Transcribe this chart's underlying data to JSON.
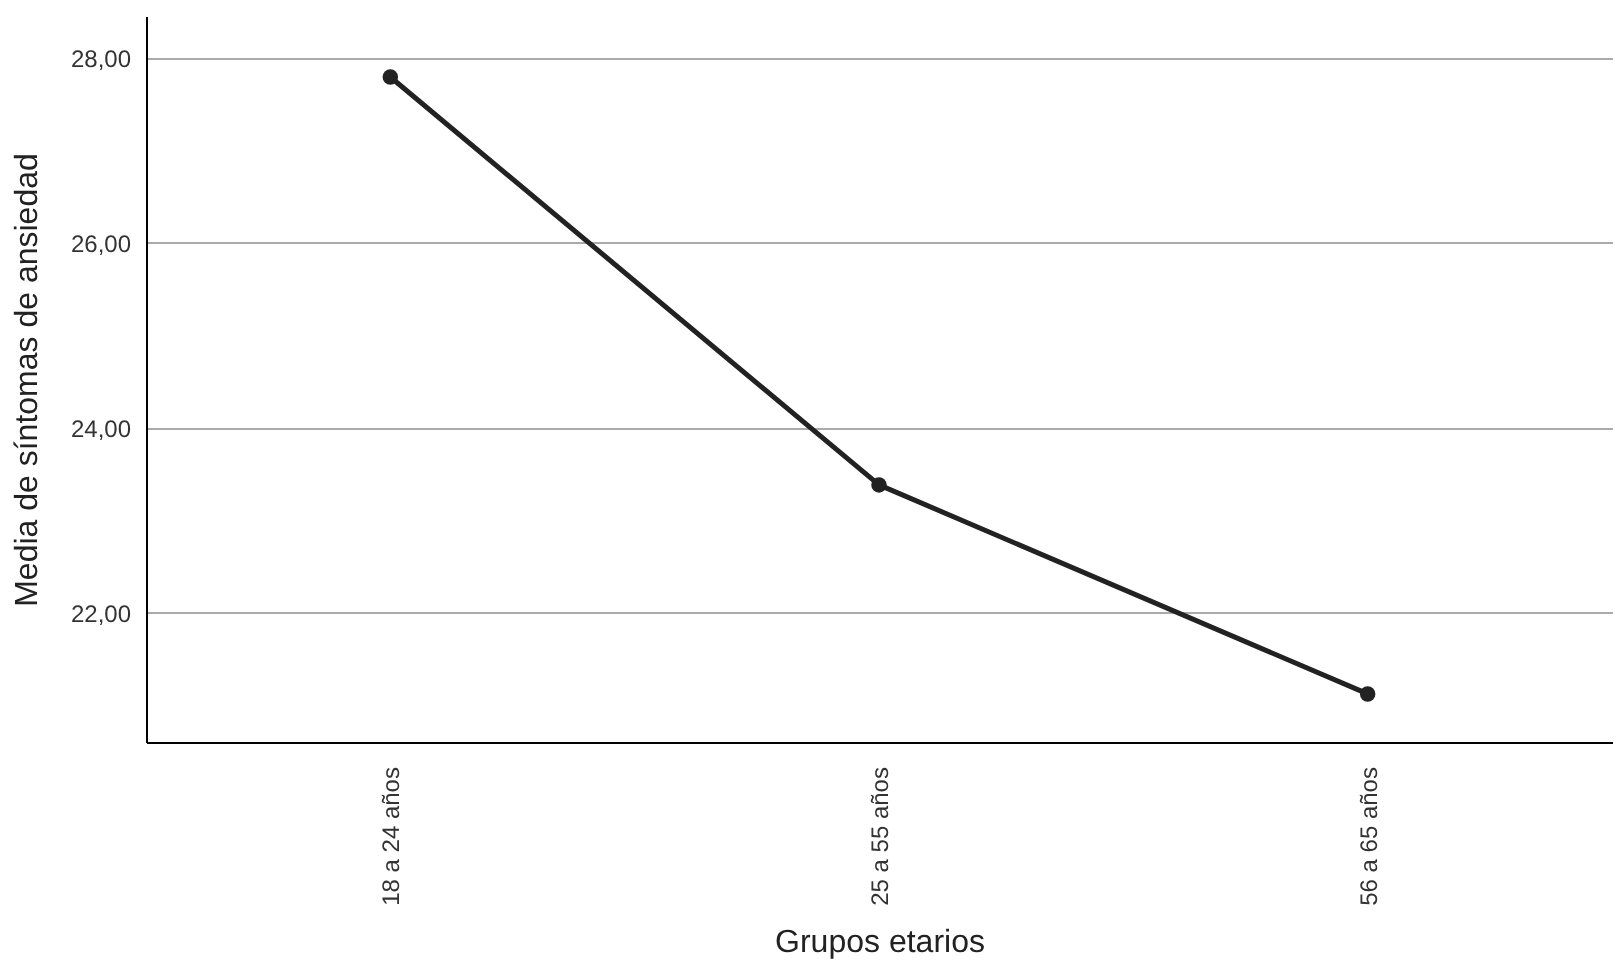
{
  "chart_data": {
    "type": "line",
    "xlabel": "Grupos etarios",
    "ylabel": "Media de síntomas de ansiedad",
    "categories": [
      "18 a 24 años",
      "25 a 55 años",
      "56 a 65 años"
    ],
    "series": [
      {
        "color": "#222222",
        "values": [
          27.79,
          23.38,
          21.12
        ]
      }
    ],
    "ylim": [
      20.6,
      28.45
    ],
    "yticks": [
      {
        "value": 22,
        "label": "22,00"
      },
      {
        "value": 24,
        "label": "24,00"
      },
      {
        "value": 26,
        "label": "26,00"
      },
      {
        "value": 28,
        "label": "28,00"
      }
    ],
    "grid": "y",
    "marker": "circle",
    "line_style": "solid"
  }
}
